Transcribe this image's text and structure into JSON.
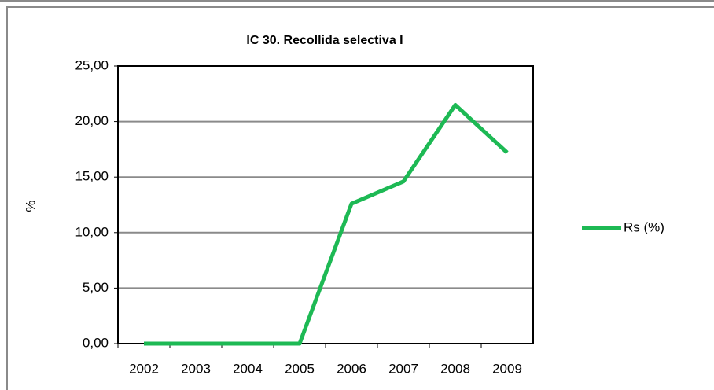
{
  "chart_data": {
    "type": "line",
    "title": "IC 30. Recollida selectiva I",
    "ylabel": "%",
    "categories": [
      "2002",
      "2003",
      "2004",
      "2005",
      "2006",
      "2007",
      "2008",
      "2009"
    ],
    "series": [
      {
        "name": "Rs (%)",
        "color": "#1db954",
        "values": [
          0,
          0,
          0,
          0,
          12.6,
          14.6,
          21.5,
          17.2
        ]
      }
    ],
    "ylim": [
      0,
      25
    ],
    "yticks": [
      {
        "value": 0,
        "label": "0,00"
      },
      {
        "value": 5,
        "label": "5,00"
      },
      {
        "value": 10,
        "label": "10,00"
      },
      {
        "value": 15,
        "label": "15,00"
      },
      {
        "value": 20,
        "label": "20,00"
      },
      {
        "value": 25,
        "label": "25,00"
      }
    ],
    "grid": true,
    "legend": "right"
  }
}
